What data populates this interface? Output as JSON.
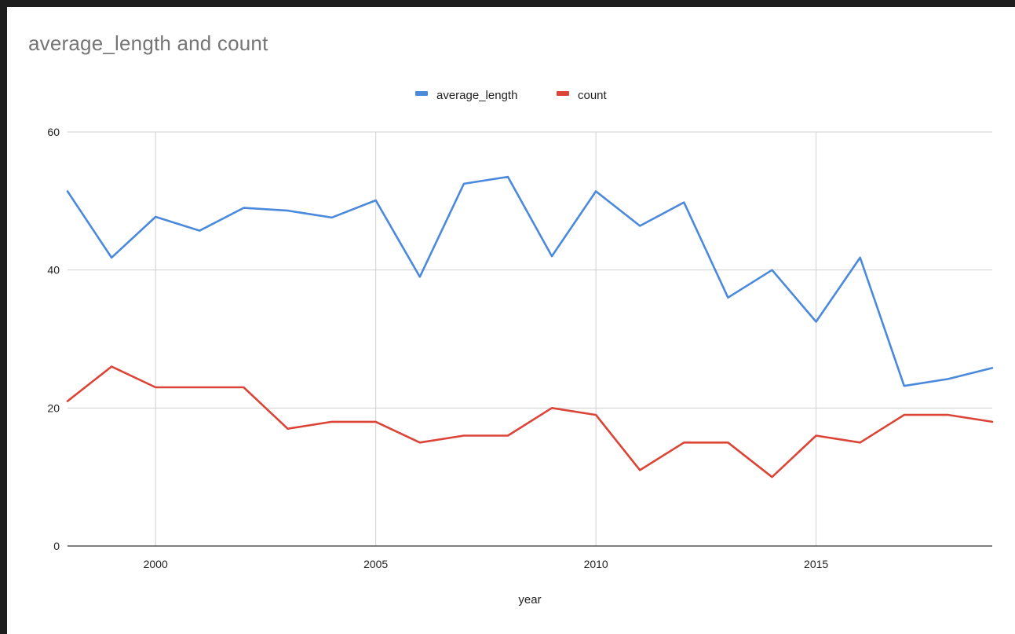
{
  "chart_data": {
    "type": "line",
    "title": "average_length and count",
    "xlabel": "year",
    "ylabel": "",
    "x": [
      1998,
      1999,
      2000,
      2001,
      2002,
      2003,
      2004,
      2005,
      2006,
      2007,
      2008,
      2009,
      2010,
      2011,
      2012,
      2013,
      2014,
      2015,
      2016,
      2017,
      2018,
      2019
    ],
    "xlim": [
      1998,
      2019
    ],
    "ylim": [
      0,
      60
    ],
    "xticks": [
      2000,
      2005,
      2010,
      2015
    ],
    "yticks": [
      0,
      20,
      40,
      60
    ],
    "grid": true,
    "legend_position": "top-center",
    "series": [
      {
        "name": "average_length",
        "color": "#4a89dc",
        "values": [
          51.4,
          41.8,
          47.7,
          45.7,
          49.0,
          48.6,
          47.6,
          50.1,
          39.0,
          52.5,
          53.5,
          42.0,
          51.4,
          46.4,
          49.8,
          36.0,
          40.0,
          32.5,
          41.8,
          23.2,
          24.2,
          25.8
        ]
      },
      {
        "name": "count",
        "color": "#db4437",
        "values": [
          21,
          26,
          23,
          23,
          23,
          17,
          18,
          18,
          15,
          16,
          16,
          20,
          19,
          11,
          15,
          15,
          10,
          16,
          15,
          19,
          19,
          18
        ]
      }
    ]
  }
}
